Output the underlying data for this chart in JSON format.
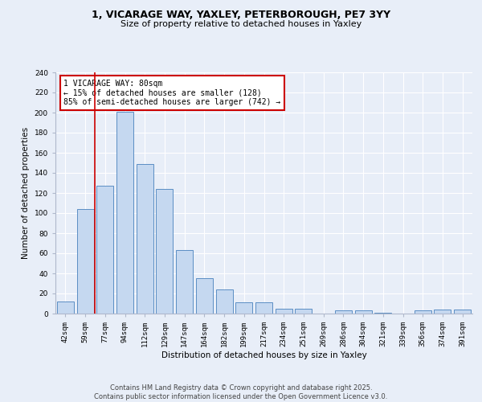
{
  "title_line1": "1, VICARAGE WAY, YAXLEY, PETERBOROUGH, PE7 3YY",
  "title_line2": "Size of property relative to detached houses in Yaxley",
  "xlabel": "Distribution of detached houses by size in Yaxley",
  "ylabel": "Number of detached properties",
  "categories": [
    "42sqm",
    "59sqm",
    "77sqm",
    "94sqm",
    "112sqm",
    "129sqm",
    "147sqm",
    "164sqm",
    "182sqm",
    "199sqm",
    "217sqm",
    "234sqm",
    "251sqm",
    "269sqm",
    "286sqm",
    "304sqm",
    "321sqm",
    "339sqm",
    "356sqm",
    "374sqm",
    "391sqm"
  ],
  "values": [
    12,
    104,
    127,
    201,
    149,
    124,
    63,
    35,
    24,
    11,
    11,
    5,
    5,
    0,
    3,
    3,
    1,
    0,
    3,
    4,
    4
  ],
  "bar_color": "#c5d8f0",
  "bar_edge_color": "#5b8ec4",
  "vline_x": 2,
  "vline_color": "#cc0000",
  "annotation_title": "1 VICARAGE WAY: 80sqm",
  "annotation_line1": "← 15% of detached houses are smaller (128)",
  "annotation_line2": "85% of semi-detached houses are larger (742) →",
  "annotation_box_color": "#ffffff",
  "annotation_box_edge": "#cc0000",
  "ylim": [
    0,
    240
  ],
  "yticks": [
    0,
    20,
    40,
    60,
    80,
    100,
    120,
    140,
    160,
    180,
    200,
    220,
    240
  ],
  "footer": "Contains HM Land Registry data © Crown copyright and database right 2025.\nContains public sector information licensed under the Open Government Licence v3.0.",
  "background_color": "#e8eef8",
  "plot_background": "#e8eef8",
  "grid_color": "#ffffff",
  "title_fontsize": 9,
  "subtitle_fontsize": 8,
  "axis_label_fontsize": 7.5,
  "tick_fontsize": 6.5,
  "annotation_fontsize": 7,
  "footer_fontsize": 6
}
